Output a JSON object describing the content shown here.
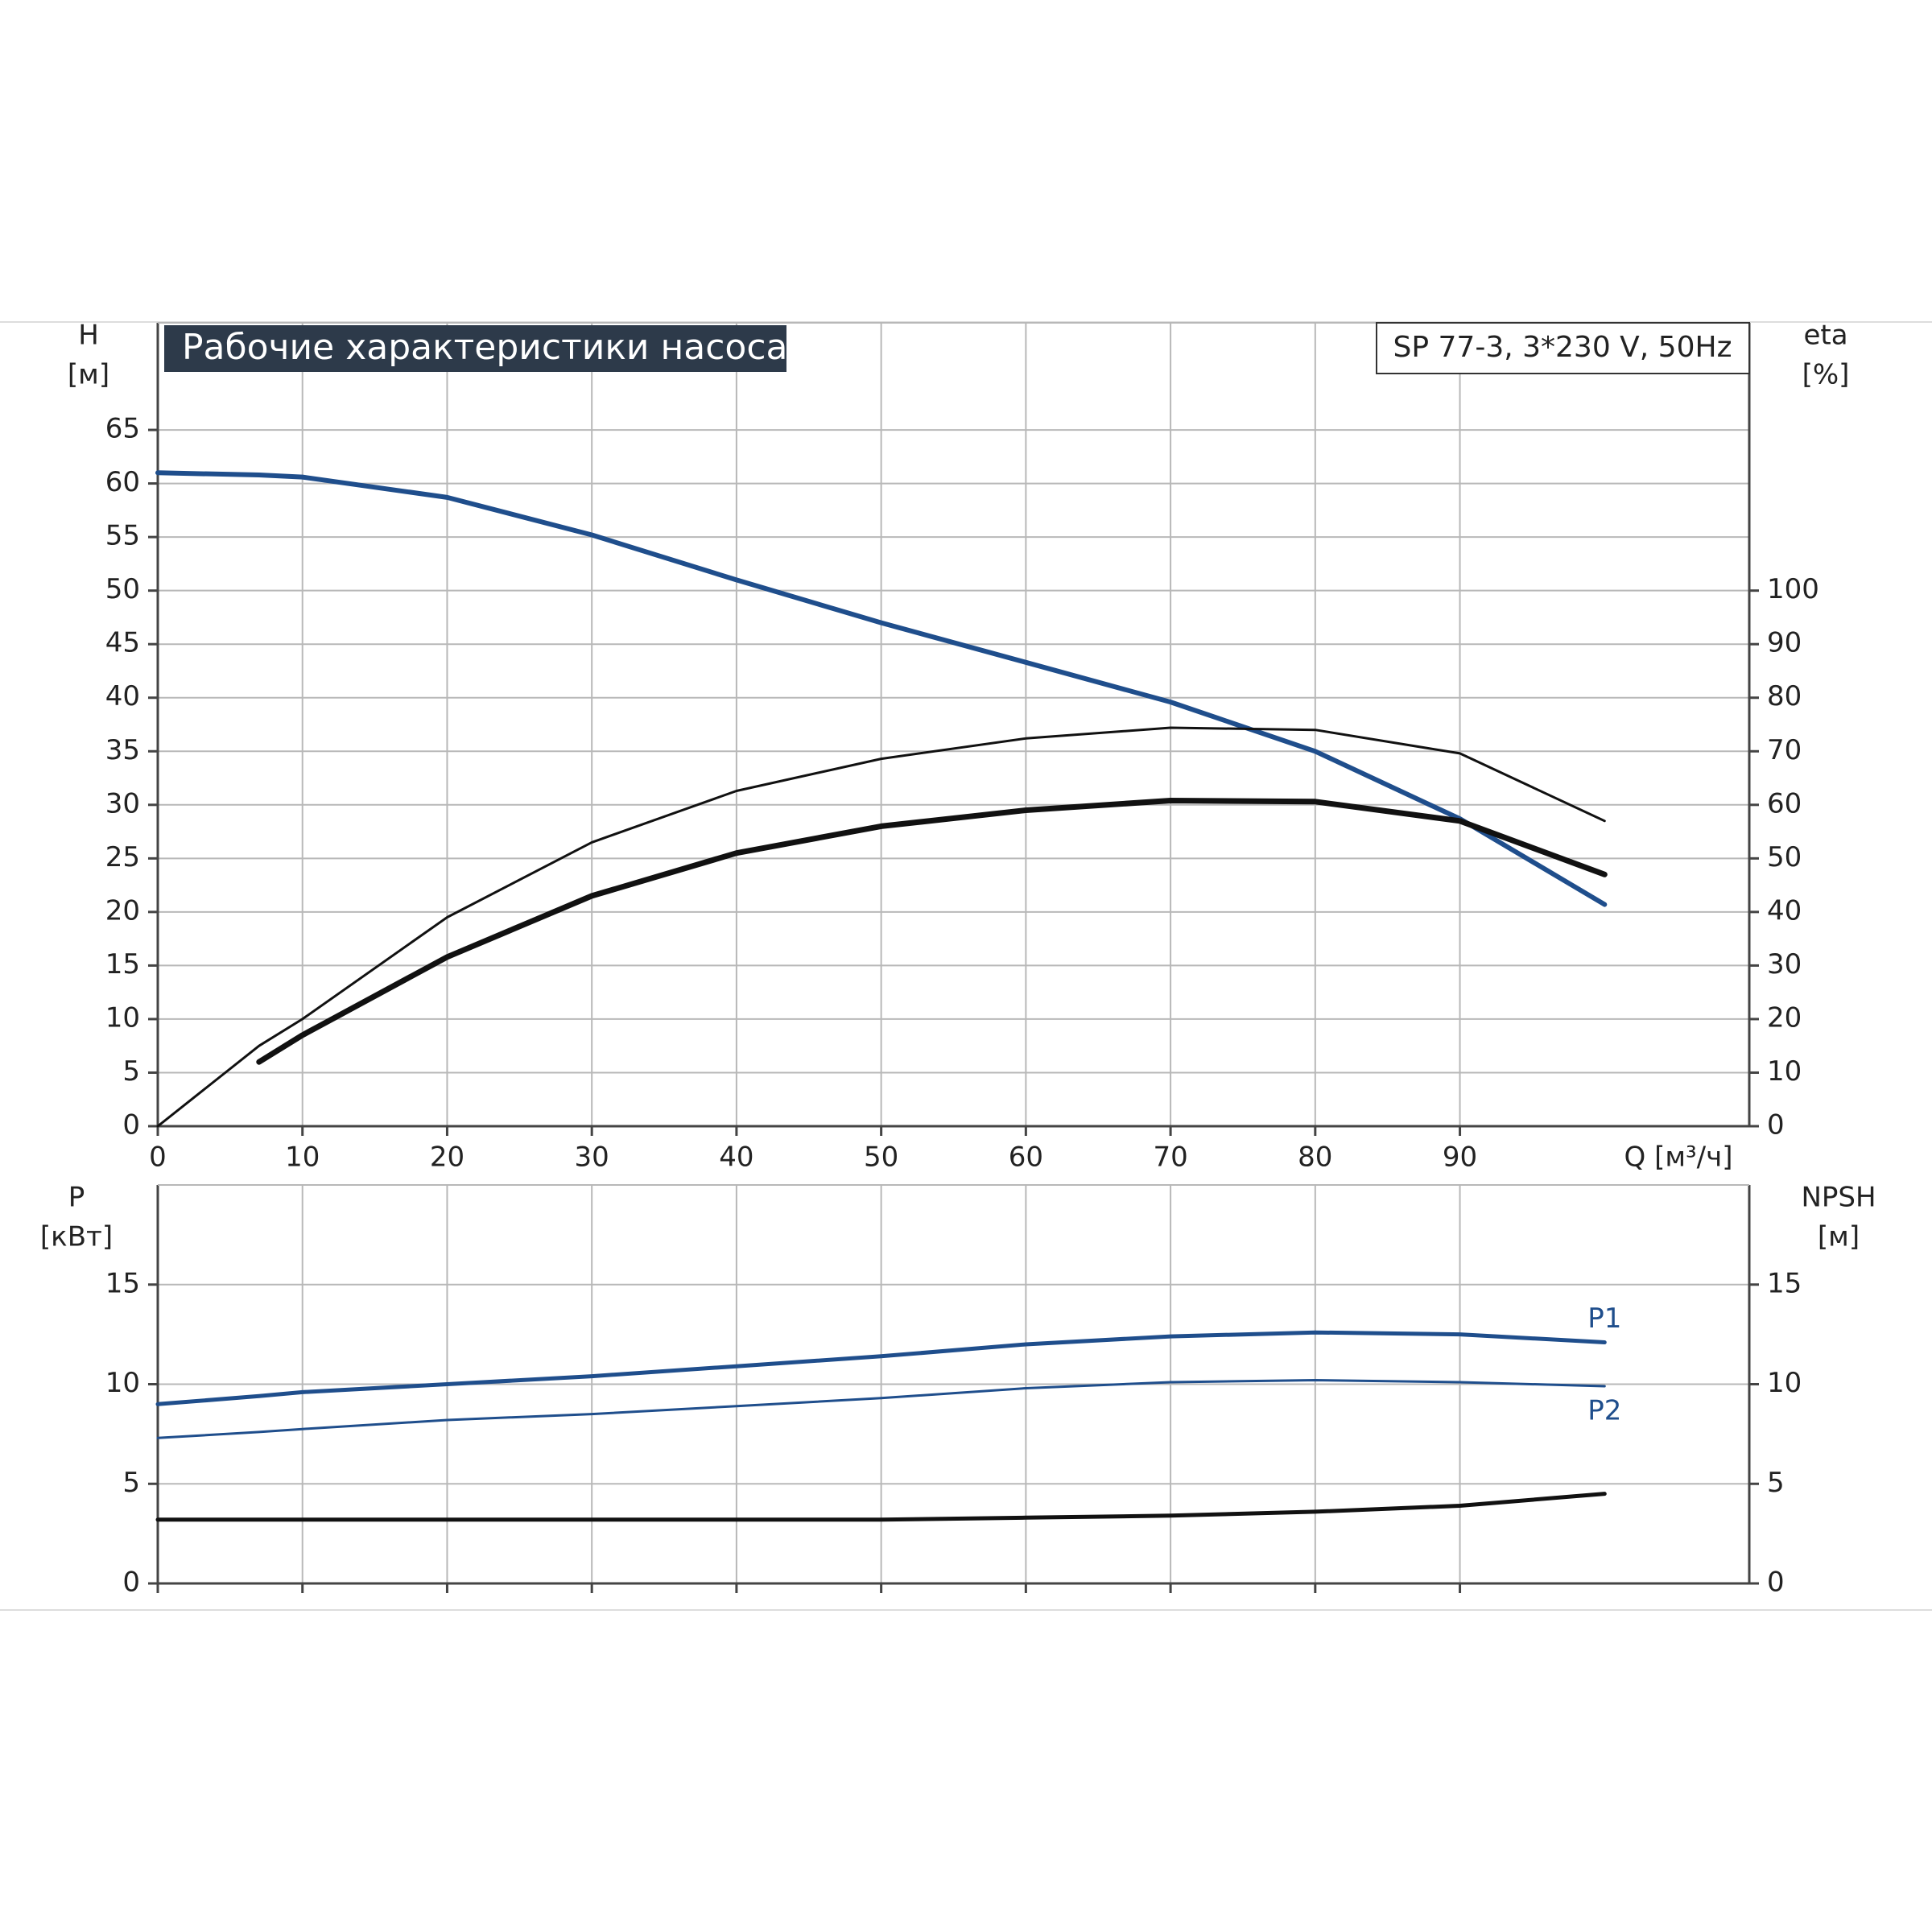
{
  "chart_data": [
    {
      "type": "line",
      "title": "Рабочие характеристики насоса",
      "subtitle": "SP 77-3, 3*230 V, 50Hz",
      "ylabel": "H",
      "yunit": "[м]",
      "y2label": "eta",
      "y2unit": "[%]",
      "xlabel": "Q [м³/ч]",
      "x": [
        0,
        7,
        10,
        20,
        30,
        40,
        50,
        60,
        70,
        80,
        90,
        100
      ],
      "xlim": [
        0,
        110
      ],
      "xticks": [
        0,
        10,
        20,
        30,
        40,
        50,
        60,
        70,
        80,
        90
      ],
      "ylim": [
        0,
        75
      ],
      "yticks": [
        0,
        5,
        10,
        15,
        20,
        25,
        30,
        35,
        40,
        45,
        50,
        55,
        60,
        65
      ],
      "y2lim": [
        0,
        150
      ],
      "y2ticks": [
        0,
        10,
        20,
        30,
        40,
        50,
        60,
        70,
        80,
        90,
        100
      ],
      "grid": true,
      "series": [
        {
          "color": "#1f4e8c",
          "linewidth": 6,
          "values": [
            61,
            60.8,
            60.6,
            58.7,
            55.2,
            51,
            47,
            43.3,
            39.6,
            35,
            28.7,
            20.7
          ]
        },
        {
          "color": "#111111",
          "linewidth": 3,
          "axis": "y2",
          "values": [
            0,
            15,
            20,
            39,
            53,
            62.6,
            68.6,
            72.4,
            74.4,
            74,
            69.6,
            57
          ]
        },
        {
          "color": "#111111",
          "linewidth": 7,
          "axis": "y2",
          "values": [
            null,
            12,
            17,
            31.6,
            43,
            51,
            56,
            59,
            60.8,
            60.6,
            57,
            47
          ]
        }
      ]
    },
    {
      "type": "line",
      "ylabel": "P",
      "yunit": "[кВт]",
      "y2label": "NPSH",
      "y2unit": "[м]",
      "x": [
        0,
        7,
        10,
        20,
        30,
        40,
        50,
        60,
        70,
        80,
        90,
        100
      ],
      "xlim": [
        0,
        110
      ],
      "xticks": [
        0,
        10,
        20,
        30,
        40,
        50,
        60,
        70,
        80,
        90
      ],
      "ylim": [
        0,
        20
      ],
      "yticks": [
        0,
        5,
        10,
        15
      ],
      "y2lim": [
        0,
        20
      ],
      "y2ticks": [
        0,
        5,
        10,
        15
      ],
      "grid": true,
      "series": [
        {
          "name": "P1",
          "color": "#1f4e8c",
          "linewidth": 5,
          "values": [
            9,
            9.4,
            9.6,
            10,
            10.4,
            10.9,
            11.4,
            12,
            12.4,
            12.6,
            12.5,
            12.1
          ]
        },
        {
          "name": "P2",
          "color": "#1f4e8c",
          "linewidth": 3,
          "values": [
            7.3,
            7.6,
            7.75,
            8.2,
            8.5,
            8.9,
            9.3,
            9.8,
            10.1,
            10.2,
            10.1,
            9.9
          ]
        },
        {
          "color": "#111111",
          "linewidth": 5,
          "axis": "y2",
          "values": [
            3.2,
            3.2,
            3.2,
            3.2,
            3.2,
            3.2,
            3.2,
            3.3,
            3.4,
            3.6,
            3.9,
            4.5
          ]
        }
      ]
    }
  ]
}
